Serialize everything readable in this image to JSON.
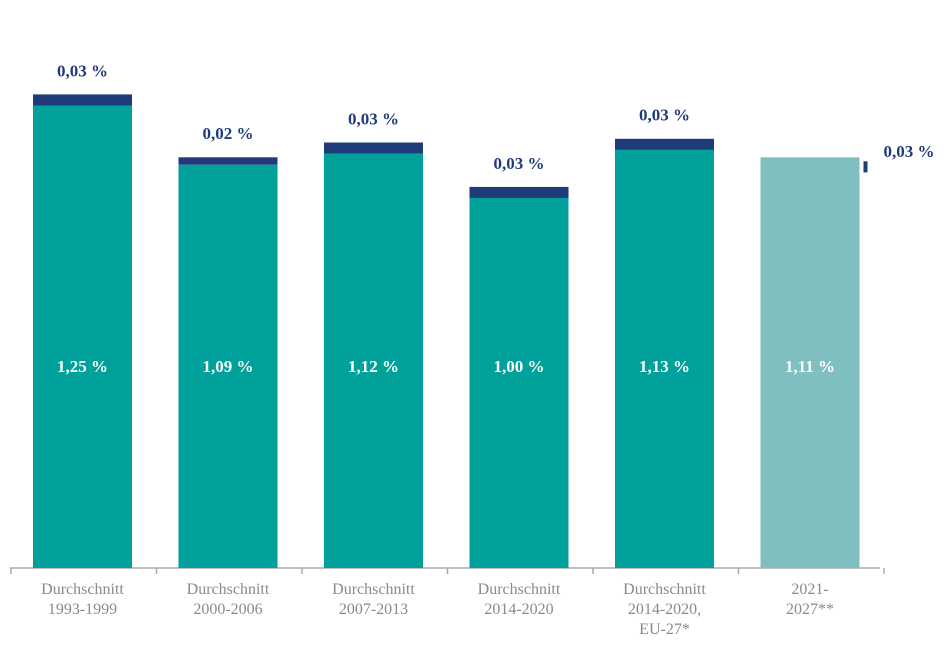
{
  "chart_data": {
    "type": "stacked-bar",
    "categories": [
      "Durchschnitt\n1993-1999",
      "Durchschnitt\n2000-2006",
      "Durchschnitt\n2007-2013",
      "Durchschnitt\n2014-2020",
      "Durchschnitt\n2014-2020,\nEU-27*",
      "2021-\n2027**"
    ],
    "series": [
      {
        "colors": [
          "#00a19a",
          "#00a19a",
          "#00a19a",
          "#00a19a",
          "#00a19a",
          "#80bfbf"
        ],
        "values": [
          1.25,
          1.09,
          1.12,
          1.0,
          1.13,
          1.11
        ],
        "value_labels": [
          "1,25 %",
          "1,09 %",
          "1,12 %",
          "1,00 %",
          "1,13 %",
          "1,11 %"
        ]
      },
      {
        "color": "#1f3b7a",
        "values": [
          0.03,
          0.02,
          0.03,
          0.03,
          0.03,
          0.03
        ],
        "value_labels": [
          "0,03 %",
          "0,02 %",
          "0,03 %",
          "0,03 %",
          "0,03 %",
          "0,03 %"
        ]
      }
    ]
  }
}
